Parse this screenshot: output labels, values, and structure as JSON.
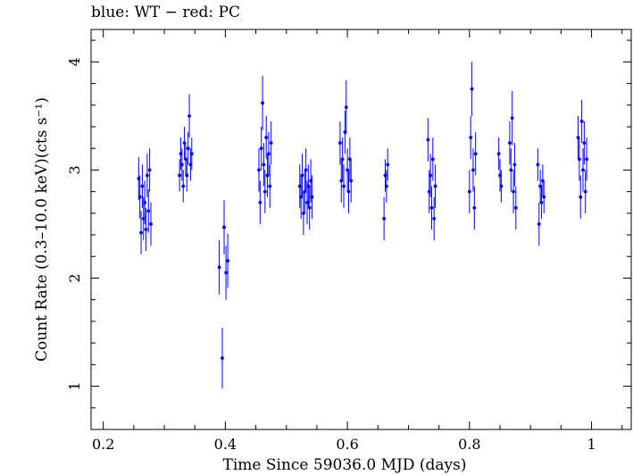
{
  "chart_data": {
    "type": "scatter",
    "title": "blue: WT − red: PC",
    "xlabel": "Time Since 59036.0 MJD (days)",
    "ylabel": "Count Rate (0.3–10.0 keV)(cts s⁻¹)",
    "xlim": [
      0.18,
      1.065
    ],
    "ylim": [
      0.6,
      4.3
    ],
    "xticks": [
      0.2,
      0.4,
      0.6,
      0.8,
      1.0
    ],
    "xtick_labels": [
      "0.2",
      "0.4",
      "0.6",
      "0.8",
      "1"
    ],
    "yticks": [
      1,
      2,
      3,
      4
    ],
    "ytick_labels": [
      "1",
      "2",
      "3",
      "4"
    ],
    "grid": false,
    "series": [
      {
        "color": "#0000ff",
        "marker": "dot with vertical error bar",
        "points": [
          [
            0.258,
            2.92,
            0.2
          ],
          [
            0.26,
            2.75,
            0.2
          ],
          [
            0.262,
            2.42,
            0.2
          ],
          [
            0.264,
            2.85,
            0.2
          ],
          [
            0.266,
            2.55,
            0.2
          ],
          [
            0.268,
            2.7,
            0.2
          ],
          [
            0.27,
            2.45,
            0.2
          ],
          [
            0.272,
            2.95,
            0.2
          ],
          [
            0.274,
            2.62,
            0.2
          ],
          [
            0.276,
            3.0,
            0.2
          ],
          [
            0.278,
            2.5,
            0.2
          ],
          [
            0.325,
            2.95,
            0.15
          ],
          [
            0.327,
            3.15,
            0.15
          ],
          [
            0.329,
            3.05,
            0.15
          ],
          [
            0.331,
            2.85,
            0.15
          ],
          [
            0.333,
            3.25,
            0.15
          ],
          [
            0.335,
            3.1,
            0.15
          ],
          [
            0.337,
            2.95,
            0.15
          ],
          [
            0.339,
            3.2,
            0.15
          ],
          [
            0.341,
            3.5,
            0.2
          ],
          [
            0.343,
            3.05,
            0.15
          ],
          [
            0.345,
            3.15,
            0.15
          ],
          [
            0.39,
            2.1,
            0.25
          ],
          [
            0.395,
            1.26,
            0.28
          ],
          [
            0.398,
            2.47,
            0.25
          ],
          [
            0.401,
            2.05,
            0.25
          ],
          [
            0.404,
            2.16,
            0.25
          ],
          [
            0.455,
            3.0,
            0.2
          ],
          [
            0.457,
            2.7,
            0.2
          ],
          [
            0.459,
            3.2,
            0.2
          ],
          [
            0.461,
            3.62,
            0.25
          ],
          [
            0.463,
            3.05,
            0.2
          ],
          [
            0.465,
            2.8,
            0.2
          ],
          [
            0.467,
            3.3,
            0.2
          ],
          [
            0.469,
            2.95,
            0.2
          ],
          [
            0.471,
            3.15,
            0.2
          ],
          [
            0.473,
            2.85,
            0.2
          ],
          [
            0.475,
            3.25,
            0.2
          ],
          [
            0.522,
            2.85,
            0.2
          ],
          [
            0.524,
            2.75,
            0.2
          ],
          [
            0.526,
            2.95,
            0.2
          ],
          [
            0.528,
            2.6,
            0.2
          ],
          [
            0.53,
            2.8,
            0.2
          ],
          [
            0.532,
            3.0,
            0.2
          ],
          [
            0.534,
            2.7,
            0.2
          ],
          [
            0.536,
            2.85,
            0.2
          ],
          [
            0.538,
            2.65,
            0.2
          ],
          [
            0.54,
            2.9,
            0.2
          ],
          [
            0.542,
            2.75,
            0.2
          ],
          [
            0.588,
            3.25,
            0.2
          ],
          [
            0.59,
            2.9,
            0.2
          ],
          [
            0.592,
            3.1,
            0.2
          ],
          [
            0.594,
            2.85,
            0.2
          ],
          [
            0.596,
            3.35,
            0.2
          ],
          [
            0.598,
            3.58,
            0.25
          ],
          [
            0.6,
            3.0,
            0.2
          ],
          [
            0.602,
            2.8,
            0.2
          ],
          [
            0.604,
            3.1,
            0.2
          ],
          [
            0.606,
            2.9,
            0.2
          ],
          [
            0.66,
            2.55,
            0.2
          ],
          [
            0.662,
            2.95,
            0.15
          ],
          [
            0.664,
            2.85,
            0.15
          ],
          [
            0.666,
            3.05,
            0.15
          ],
          [
            0.732,
            3.28,
            0.2
          ],
          [
            0.734,
            2.8,
            0.2
          ],
          [
            0.736,
            2.95,
            0.2
          ],
          [
            0.738,
            2.65,
            0.2
          ],
          [
            0.74,
            3.1,
            0.2
          ],
          [
            0.742,
            2.55,
            0.2
          ],
          [
            0.744,
            2.85,
            0.2
          ],
          [
            0.8,
            2.8,
            0.2
          ],
          [
            0.802,
            3.3,
            0.2
          ],
          [
            0.804,
            3.75,
            0.25
          ],
          [
            0.806,
            3.0,
            0.2
          ],
          [
            0.808,
            2.65,
            0.2
          ],
          [
            0.81,
            3.15,
            0.2
          ],
          [
            0.848,
            3.15,
            0.15
          ],
          [
            0.85,
            2.95,
            0.15
          ],
          [
            0.852,
            2.85,
            0.15
          ],
          [
            0.866,
            3.25,
            0.2
          ],
          [
            0.868,
            3.0,
            0.2
          ],
          [
            0.87,
            3.48,
            0.25
          ],
          [
            0.872,
            2.8,
            0.2
          ],
          [
            0.874,
            3.05,
            0.2
          ],
          [
            0.876,
            2.65,
            0.2
          ],
          [
            0.912,
            3.05,
            0.15
          ],
          [
            0.914,
            2.5,
            0.2
          ],
          [
            0.916,
            2.85,
            0.15
          ],
          [
            0.918,
            2.7,
            0.15
          ],
          [
            0.92,
            2.9,
            0.15
          ],
          [
            0.922,
            2.75,
            0.15
          ],
          [
            0.978,
            3.3,
            0.2
          ],
          [
            0.98,
            3.1,
            0.2
          ],
          [
            0.982,
            2.75,
            0.2
          ],
          [
            0.984,
            3.45,
            0.2
          ],
          [
            0.986,
            3.0,
            0.2
          ],
          [
            0.988,
            3.25,
            0.2
          ],
          [
            0.99,
            2.8,
            0.2
          ],
          [
            0.992,
            3.1,
            0.2
          ]
        ]
      }
    ]
  }
}
